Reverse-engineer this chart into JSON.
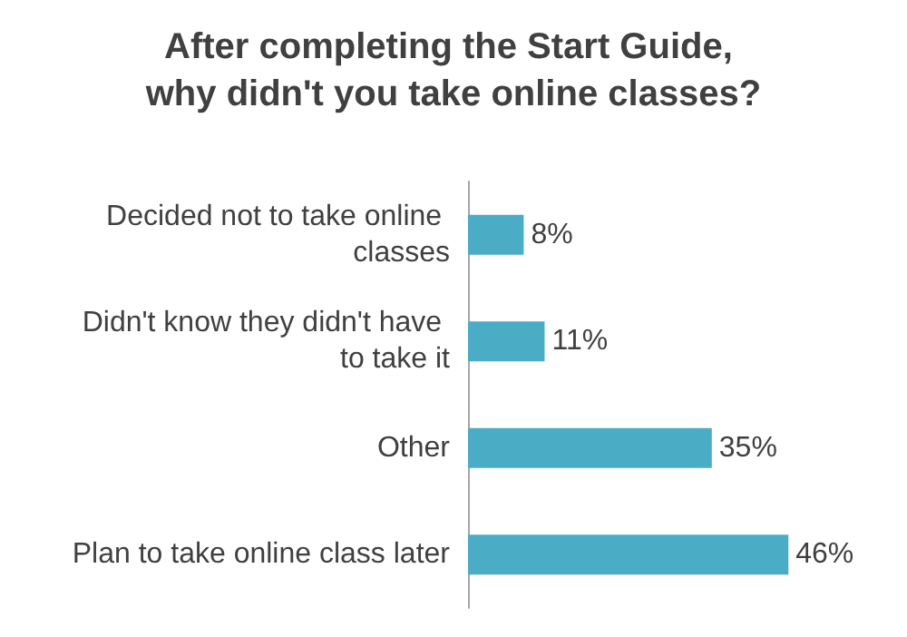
{
  "chart_data": {
    "type": "bar",
    "orientation": "horizontal",
    "title": "After completing the Start Guide, why didn't you take online classes?",
    "categories": [
      "Decided not to take online classes",
      "Didn't know they didn't have to take it",
      "Other",
      "Plan to take online class later"
    ],
    "values": [
      8,
      11,
      35,
      46
    ],
    "color": "#4bacc6",
    "data_labels": true,
    "value_labels": [
      "8%",
      "11%",
      "35%",
      "46%"
    ]
  }
}
